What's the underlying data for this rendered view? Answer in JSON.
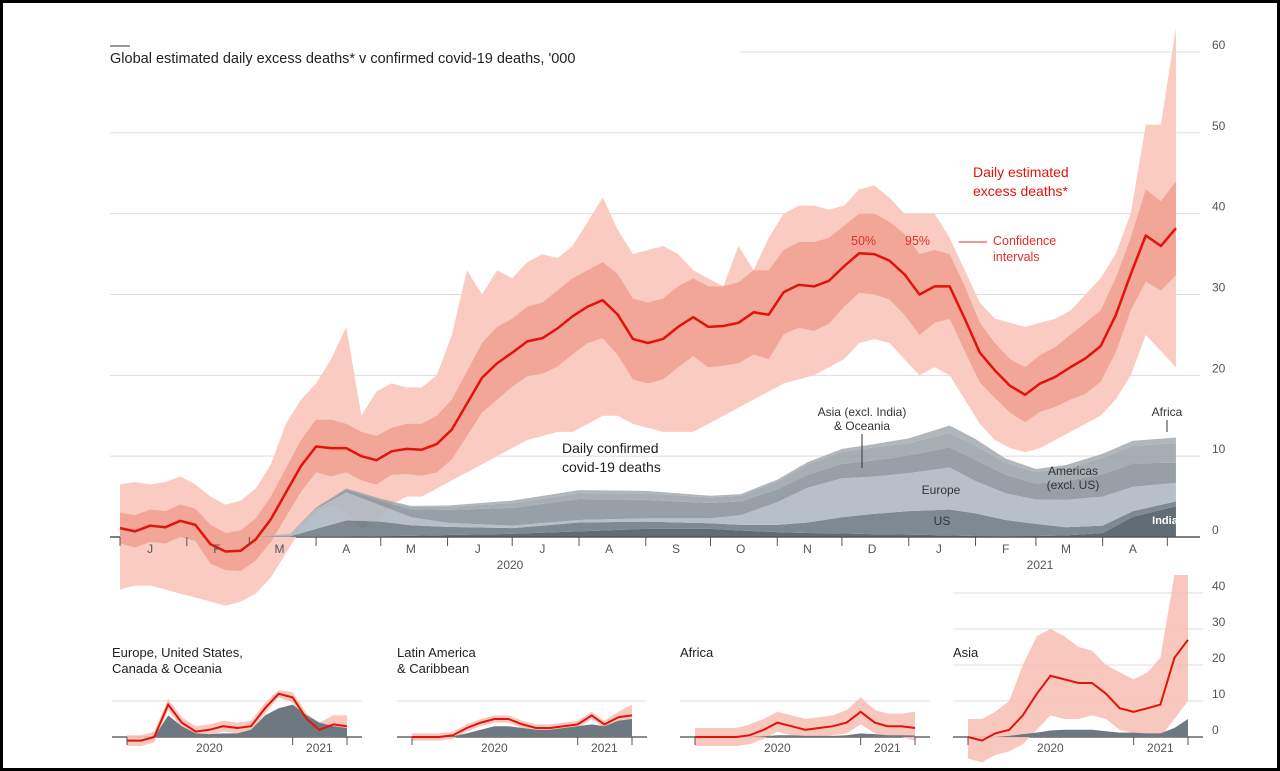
{
  "chart_data": [
    {
      "type": "area",
      "title": "Global estimated daily excess deaths* v confirmed covid-19 deaths, '000",
      "ylim": [
        -8,
        65
      ],
      "y_ticks": [
        0,
        10,
        20,
        30,
        40,
        50,
        60
      ],
      "y_tick_labels": [
        "0",
        "10",
        "20",
        "30",
        "40",
        "50",
        "60"
      ],
      "y_axis_position": "right",
      "grid": true,
      "month_labels": [
        "J",
        "F",
        "M",
        "A",
        "M",
        "J",
        "J",
        "A",
        "S",
        "O",
        "N",
        "D",
        "J",
        "F",
        "M",
        "A"
      ],
      "year_labels": [
        "2020",
        "2021"
      ],
      "colors": {
        "line": "#e3120b",
        "band95": "#f9cbc1",
        "band50": "#f1a697",
        "confirmed": [
          "#4d5862",
          "#6e7983",
          "#aeb8c1",
          "#8a949c",
          "#9ba3aa",
          "#a7adb2"
        ]
      },
      "annotations": {
        "excess_label": [
          "Daily estimated",
          "excess deaths*"
        ],
        "ci_50": "50%",
        "ci_95": "95%",
        "ci_label": [
          "Confidence",
          "intervals"
        ],
        "confirmed_label": [
          "Daily confirmed",
          "covid-19 deaths"
        ],
        "asia_label": [
          "Asia (excl. India)",
          "& Oceania"
        ],
        "europe_label": "Europe",
        "americas_label": [
          "Americas",
          "(excl. US)"
        ],
        "us_label": "US",
        "africa_label": "Africa",
        "india_label": "India"
      },
      "excess": {
        "name": "Daily estimated excess deaths*",
        "x": [
          "2020-01-01",
          "2020-01-08",
          "2020-01-15",
          "2020-01-22",
          "2020-01-29",
          "2020-02-05",
          "2020-02-12",
          "2020-02-19",
          "2020-02-26",
          "2020-03-04",
          "2020-03-11",
          "2020-03-18",
          "2020-03-25",
          "2020-04-01",
          "2020-04-08",
          "2020-04-15",
          "2020-04-22",
          "2020-04-29",
          "2020-05-06",
          "2020-05-13",
          "2020-05-20",
          "2020-05-27",
          "2020-06-03",
          "2020-06-10",
          "2020-06-17",
          "2020-06-24",
          "2020-07-01",
          "2020-07-08",
          "2020-07-15",
          "2020-07-22",
          "2020-07-29",
          "2020-08-05",
          "2020-08-12",
          "2020-08-19",
          "2020-08-26",
          "2020-09-02",
          "2020-09-09",
          "2020-09-16",
          "2020-09-23",
          "2020-09-30",
          "2020-10-07",
          "2020-10-14",
          "2020-10-21",
          "2020-10-28",
          "2020-11-04",
          "2020-11-11",
          "2020-11-18",
          "2020-11-25",
          "2020-12-02",
          "2020-12-09",
          "2020-12-16",
          "2020-12-23",
          "2020-12-30",
          "2021-01-06",
          "2021-01-13",
          "2021-01-20",
          "2021-01-27",
          "2021-02-03",
          "2021-02-10",
          "2021-02-17",
          "2021-02-24",
          "2021-03-03",
          "2021-03-10",
          "2021-03-17",
          "2021-03-24",
          "2021-03-31",
          "2021-04-07",
          "2021-04-14",
          "2021-04-21",
          "2021-04-28",
          "2021-05-05"
        ],
        "values": [
          1.1,
          0.7,
          1.4,
          1.2,
          2.0,
          1.5,
          -0.9,
          -1.8,
          -1.7,
          -0.3,
          2.2,
          5.5,
          8.8,
          11.2,
          11.0,
          11.0,
          10.0,
          9.5,
          10.6,
          10.9,
          10.8,
          11.5,
          13.3,
          16.5,
          19.7,
          21.5,
          22.8,
          24.2,
          24.6,
          25.8,
          27.3,
          28.5,
          29.3,
          27.5,
          24.5,
          24.0,
          24.5,
          26.0,
          27.2,
          26.0,
          26.1,
          26.5,
          27.8,
          27.5,
          30.3,
          31.2,
          31.0,
          31.7,
          33.5,
          35.1,
          35.0,
          34.2,
          32.5,
          30.0,
          31.0,
          31.0,
          27.0,
          22.8,
          20.6,
          18.7,
          17.6,
          19.0,
          19.8,
          21.0,
          22.1,
          23.6,
          27.4,
          32.5,
          37.3,
          36.0,
          38.2
        ],
        "hi50": [
          3,
          2.7,
          3.4,
          3.2,
          4,
          3.5,
          1.5,
          0.5,
          0.8,
          2.3,
          5,
          8.5,
          12,
          14.5,
          14.5,
          14,
          13,
          12.5,
          13.5,
          14,
          14,
          15,
          17,
          20.5,
          24,
          26,
          27,
          28.5,
          29,
          30.5,
          32,
          33,
          34,
          32.5,
          29.5,
          29,
          29.5,
          31,
          32,
          31,
          31,
          31.5,
          33,
          33,
          35.5,
          36.5,
          36.5,
          37,
          38.5,
          40,
          40,
          39,
          37.5,
          35,
          35.5,
          35,
          31,
          26.5,
          24,
          22,
          21,
          22.5,
          23.5,
          25,
          26.5,
          28,
          32,
          37,
          43,
          41.5,
          44
        ],
        "lo50": [
          -0.8,
          -1.3,
          -0.6,
          -0.8,
          0,
          -0.5,
          -3.3,
          -4.1,
          -4.2,
          -2.9,
          -0.6,
          2.5,
          5.6,
          8,
          7.5,
          8,
          7,
          6.5,
          7.7,
          7.8,
          7.6,
          8,
          9.6,
          12.5,
          15.4,
          17,
          18.6,
          19.9,
          20.2,
          21.1,
          22.6,
          24,
          24.6,
          22.5,
          19.5,
          19,
          19.5,
          21,
          22.4,
          21,
          21.2,
          21.5,
          22.6,
          22,
          25.1,
          25.9,
          25.5,
          26.4,
          28.5,
          30.2,
          30,
          29.4,
          27.5,
          25,
          26.5,
          27,
          23,
          19.1,
          17.2,
          15.4,
          14.2,
          15.5,
          16.1,
          17,
          17.7,
          19.2,
          22.8,
          28,
          31.6,
          30.5,
          32.4
        ],
        "hi95": [
          6.5,
          6.8,
          6.5,
          6.8,
          7.5,
          6.5,
          5.0,
          4.0,
          4.5,
          6.0,
          9,
          14,
          17,
          19,
          22,
          26,
          15,
          18,
          19,
          18.5,
          18.5,
          20,
          25,
          33,
          30,
          33,
          32,
          34,
          35,
          34.5,
          36,
          39,
          42,
          38,
          35,
          35.5,
          36,
          35,
          33,
          32,
          31,
          36,
          33,
          37,
          40,
          41,
          41,
          40.5,
          41,
          43,
          43.5,
          42,
          40,
          40,
          40,
          37,
          33,
          29,
          27,
          26.5,
          26,
          26.5,
          27,
          28,
          30,
          32,
          35,
          40,
          51,
          51,
          63
        ],
        "lo95": [
          -6.5,
          -6,
          -6,
          -6.5,
          -7,
          -7.5,
          -8,
          -8.5,
          -8,
          -7,
          -5,
          -2,
          1,
          3,
          4,
          3,
          1,
          2,
          4,
          5,
          5,
          6,
          7,
          8,
          9,
          10,
          11,
          12,
          12.5,
          13,
          13,
          14,
          15,
          15,
          14,
          13.5,
          13,
          13,
          13,
          14,
          15,
          16,
          17,
          18,
          19,
          19.5,
          20,
          21,
          22,
          24,
          24.5,
          24,
          22,
          20,
          21,
          20,
          17,
          14,
          12,
          11,
          10.5,
          11,
          12,
          13,
          14,
          15,
          17,
          20,
          25,
          23,
          21
        ]
      },
      "confirmed": {
        "name": "Daily confirmed covid-19 deaths",
        "x": [
          "2020-01-01",
          "2020-02-01",
          "2020-03-01",
          "2020-03-20",
          "2020-04-01",
          "2020-04-15",
          "2020-05-01",
          "2020-05-15",
          "2020-06-01",
          "2020-07-01",
          "2020-08-01",
          "2020-09-01",
          "2020-10-01",
          "2020-10-15",
          "2020-11-01",
          "2020-11-15",
          "2020-12-01",
          "2020-12-15",
          "2021-01-01",
          "2021-01-20",
          "2021-02-01",
          "2021-02-15",
          "2021-03-01",
          "2021-03-15",
          "2021-04-01",
          "2021-04-15",
          "2021-05-05"
        ],
        "series": [
          {
            "name": "India",
            "values": [
              0,
              0,
              0,
              0,
              0,
              0.05,
              0.1,
              0.15,
              0.25,
              0.4,
              0.7,
              1.0,
              1.0,
              0.8,
              0.6,
              0.5,
              0.45,
              0.35,
              0.3,
              0.2,
              0.12,
              0.1,
              0.12,
              0.2,
              0.5,
              2.5,
              3.8
            ]
          },
          {
            "name": "US",
            "values": [
              0,
              0,
              0,
              0.1,
              1.0,
              2.0,
              1.8,
              1.3,
              1.0,
              0.7,
              1.1,
              0.9,
              0.7,
              0.7,
              0.9,
              1.3,
              2.0,
              2.5,
              2.9,
              3.2,
              2.8,
              2.0,
              1.5,
              1.0,
              0.9,
              0.7,
              0.6
            ]
          },
          {
            "name": "Europe",
            "values": [
              0,
              0,
              0,
              0.3,
              2.5,
              3.5,
              2.0,
              1.0,
              0.5,
              0.3,
              0.3,
              0.4,
              0.6,
              1.2,
              2.8,
              4.3,
              4.8,
              4.6,
              4.7,
              5.2,
              4.0,
              3.3,
              3.0,
              3.4,
              3.6,
              3.0,
              2.3
            ]
          },
          {
            "name": "Americas (excl. US)",
            "values": [
              0,
              0,
              0,
              0,
              0.1,
              0.3,
              0.6,
              1.0,
              1.6,
              2.2,
              2.6,
              2.3,
              1.9,
              1.7,
              1.6,
              1.6,
              1.8,
              2.0,
              2.2,
              2.5,
              2.6,
              2.3,
              2.0,
              2.3,
              2.8,
              2.9,
              2.5
            ]
          },
          {
            "name": "Asia (excl. India) & Oceania",
            "values": [
              0,
              0,
              0,
              0,
              0.05,
              0.15,
              0.2,
              0.3,
              0.4,
              0.6,
              0.7,
              0.8,
              0.7,
              0.7,
              1.0,
              1.3,
              1.5,
              1.6,
              1.5,
              1.8,
              1.8,
              1.5,
              1.4,
              1.6,
              2.0,
              2.2,
              2.4
            ]
          },
          {
            "name": "Africa",
            "values": [
              0,
              0,
              0,
              0,
              0,
              0.02,
              0.05,
              0.1,
              0.15,
              0.3,
              0.4,
              0.3,
              0.2,
              0.2,
              0.2,
              0.25,
              0.35,
              0.4,
              0.6,
              0.9,
              0.8,
              0.5,
              0.4,
              0.4,
              0.5,
              0.6,
              0.7
            ]
          }
        ]
      }
    },
    {
      "type": "small-multiples",
      "x": [
        "2020-01-01",
        "2020-02-01",
        "2020-03-01",
        "2020-04-01",
        "2020-05-01",
        "2020-06-01",
        "2020-07-01",
        "2020-08-01",
        "2020-09-01",
        "2020-10-01",
        "2020-11-01",
        "2020-12-01",
        "2021-01-01",
        "2021-02-01",
        "2021-03-01",
        "2021-04-01",
        "2021-05-01"
      ],
      "y_ticks": [
        0,
        10,
        20,
        30,
        40
      ],
      "y_tick_labels": [
        "0",
        "10",
        "20",
        "30",
        "40"
      ],
      "year_labels": [
        "2020",
        "2021"
      ],
      "panels": [
        {
          "title": [
            "Europe, United States,",
            "Canada & Oceania"
          ],
          "excess": [
            -1,
            -1,
            0,
            9,
            4,
            1.5,
            2,
            3,
            2.5,
            3,
            8,
            12,
            11,
            5,
            2,
            3.5,
            3
          ],
          "hi95": [
            0.5,
            0.5,
            1.5,
            10.5,
            5.5,
            3,
            3.5,
            4.5,
            4,
            4.5,
            9.5,
            13,
            12.5,
            6.5,
            4,
            6,
            6
          ],
          "lo95": [
            -2.5,
            -2.5,
            -1.5,
            7.5,
            2.5,
            0,
            0.5,
            1.5,
            1,
            1.5,
            6.5,
            11,
            9.5,
            3.5,
            0,
            1,
            0
          ],
          "confirmed": [
            0,
            0,
            0,
            6,
            3,
            1,
            0.8,
            1,
            1,
            2,
            6,
            8,
            9,
            6,
            4,
            3,
            2.5
          ]
        },
        {
          "title": [
            "Latin America",
            "& Caribbean"
          ],
          "excess": [
            0,
            0,
            0,
            0.5,
            2.5,
            4,
            5,
            5,
            3.5,
            2.5,
            2.5,
            3,
            3.5,
            6,
            3.5,
            5.5,
            6
          ],
          "hi95": [
            1,
            1,
            1,
            1.5,
            3.5,
            5,
            6,
            6,
            4.5,
            3.5,
            3.5,
            4,
            4.5,
            7,
            4.5,
            7,
            9
          ],
          "lo95": [
            -1,
            -1,
            -1,
            -0.5,
            1.5,
            3,
            4,
            4,
            2.5,
            1.5,
            1.5,
            2,
            2.5,
            5,
            2.5,
            4,
            4
          ],
          "confirmed": [
            0,
            0,
            0,
            0.2,
            1,
            2,
            3,
            3,
            2.5,
            2,
            2,
            2.5,
            3,
            3.5,
            3,
            4.5,
            5
          ]
        },
        {
          "title": [
            "Africa"
          ],
          "excess": [
            0,
            0,
            0,
            0,
            0.5,
            2,
            4,
            3,
            2,
            2.5,
            3,
            4,
            7,
            4,
            3,
            3,
            2.5
          ],
          "hi95": [
            2.5,
            2.5,
            2.5,
            2.5,
            3.5,
            5,
            7,
            6,
            5,
            5.5,
            6,
            7.5,
            11,
            7.5,
            6.5,
            6.5,
            7
          ],
          "lo95": [
            -2.5,
            -2.5,
            -2.5,
            -2.5,
            -2,
            -0.5,
            1.5,
            0.5,
            0,
            0,
            0.5,
            1,
            3.5,
            1,
            0,
            0,
            -1
          ],
          "confirmed": [
            0,
            0,
            0,
            0,
            0,
            0.2,
            0.5,
            0.5,
            0.3,
            0.3,
            0.3,
            0.5,
            1,
            0.8,
            0.5,
            0.5,
            0.4
          ]
        },
        {
          "title": [
            "Asia"
          ],
          "excess": [
            0,
            -1,
            1,
            2,
            6,
            12,
            17,
            16,
            15,
            15,
            12,
            8,
            7,
            8,
            9,
            22,
            27
          ],
          "hi95": [
            5,
            5,
            7,
            10,
            20,
            28,
            30,
            28,
            25,
            24,
            20,
            18,
            16,
            18,
            22,
            45,
            45
          ],
          "lo95": [
            -6,
            -7,
            -5,
            -4,
            -2,
            2,
            6,
            5,
            5,
            6,
            5,
            2,
            1,
            1,
            0,
            5,
            10
          ],
          "confirmed": [
            0,
            0,
            0,
            0.3,
            0.8,
            1.2,
            1.8,
            2,
            2,
            2,
            1.6,
            1.2,
            1.2,
            1,
            1,
            2.5,
            5
          ]
        }
      ]
    }
  ]
}
